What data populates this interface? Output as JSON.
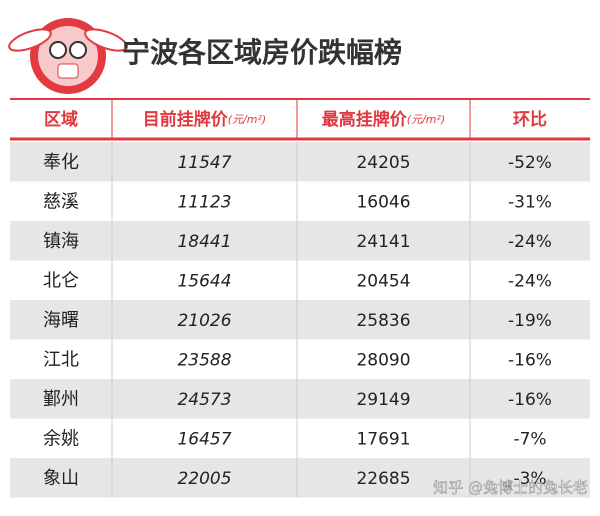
{
  "header": {
    "title": "宁波各区域房价跌幅榜"
  },
  "table": {
    "columns": [
      {
        "label": "区域"
      },
      {
        "label": "目前挂牌价",
        "unit": "(元/m²)"
      },
      {
        "label": "最高挂牌价",
        "unit": "(元/m²)"
      },
      {
        "label": "环比"
      }
    ],
    "rows": [
      [
        "奉化",
        "11547",
        "24205",
        "-52%"
      ],
      [
        "慈溪",
        "11123",
        "16046",
        "-31%"
      ],
      [
        "镇海",
        "18441",
        "24141",
        "-24%"
      ],
      [
        "北仑",
        "15644",
        "20454",
        "-24%"
      ],
      [
        "海曙",
        "21026",
        "25836",
        "-19%"
      ],
      [
        "江北",
        "23588",
        "28090",
        "-16%"
      ],
      [
        "鄞州",
        "24573",
        "29149",
        "-16%"
      ],
      [
        "余姚",
        "16457",
        "17691",
        "-7%"
      ],
      [
        "象山",
        "22005",
        "22685",
        "-3%"
      ]
    ]
  },
  "watermark": "知乎 @兔博士的兔长老"
}
